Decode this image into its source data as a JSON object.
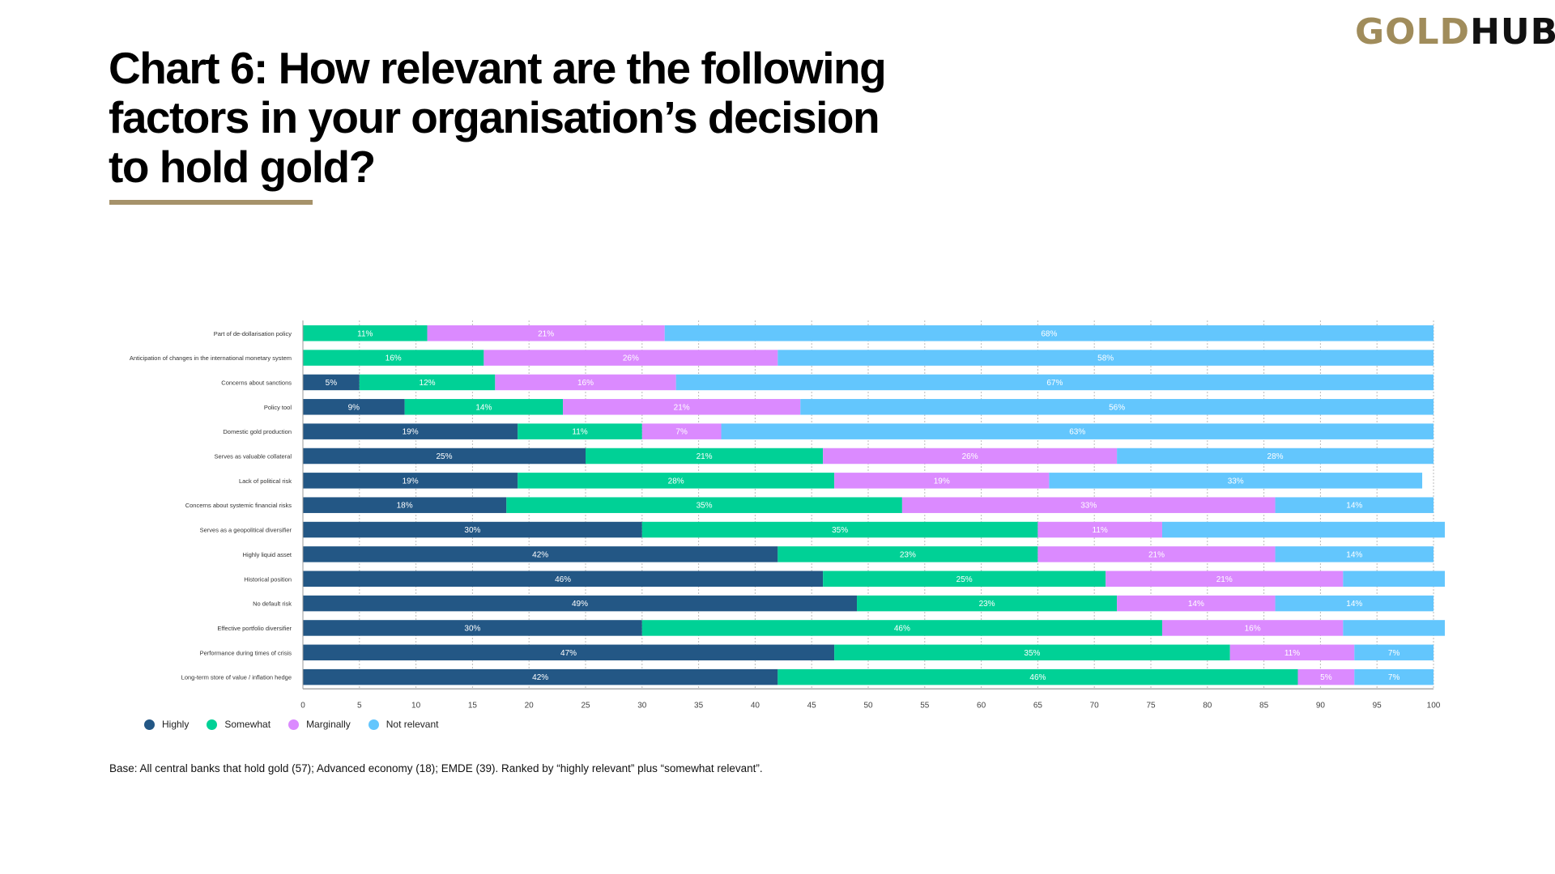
{
  "logo": {
    "part1": "GOLD",
    "part2": "HUB"
  },
  "page": {
    "title": "Chart 6: How relevant are the following factors in your organisation’s decision to hold gold?",
    "footnote": "Base: All central banks that hold gold (57); Advanced economy (18); EMDE (39). Ranked by “highly relevant” plus “somewhat relevant”.",
    "accent_color": "#a6926a"
  },
  "chart_data": {
    "type": "bar",
    "orientation": "horizontal",
    "stacked": true,
    "title": "Chart 6: How relevant are the following factors in your organisation’s decision to hold gold?",
    "xlabel": "",
    "ylabel": "",
    "xlim": [
      0,
      100
    ],
    "xticks": [
      0,
      5,
      10,
      15,
      20,
      25,
      30,
      35,
      40,
      45,
      50,
      55,
      60,
      65,
      70,
      75,
      80,
      85,
      90,
      95,
      100
    ],
    "grid": "vertical dotted",
    "legend_position": "bottom-left",
    "categories": [
      "Part of de-dollarisation policy",
      "Anticipation of changes in the international monetary system",
      "Concerns about sanctions",
      "Policy tool",
      "Domestic gold production",
      "Serves as valuable collateral",
      "Lack of political risk",
      "Concerns about systemic financial risks",
      "Serves as a geopolitical diversifier",
      "Highly liquid asset",
      "Historical position",
      "No default risk",
      "Effective portfolio diversifier",
      "Performance during times of crisis",
      "Long-term store of value / inflation hedge"
    ],
    "series": [
      {
        "name": "Highly",
        "color": "#235785",
        "values": [
          0,
          0,
          5,
          9,
          19,
          25,
          19,
          18,
          30,
          42,
          46,
          49,
          30,
          47,
          42
        ],
        "labels": [
          "",
          "",
          "5%",
          "9%",
          "19%",
          "25%",
          "19%",
          "18%",
          "30%",
          "42%",
          "46%",
          "49%",
          "30%",
          "47%",
          "42%"
        ]
      },
      {
        "name": "Somewhat",
        "color": "#00d196",
        "values": [
          11,
          16,
          12,
          14,
          11,
          21,
          28,
          35,
          35,
          23,
          25,
          23,
          46,
          35,
          46
        ],
        "labels": [
          "11%",
          "16%",
          "12%",
          "14%",
          "11%",
          "21%",
          "28%",
          "35%",
          "35%",
          "23%",
          "25%",
          "23%",
          "46%",
          "35%",
          "46%"
        ]
      },
      {
        "name": "Marginally",
        "color": "#db8aff",
        "values": [
          21,
          26,
          16,
          21,
          7,
          26,
          19,
          33,
          11,
          21,
          21,
          14,
          16,
          11,
          5
        ],
        "labels": [
          "21%",
          "26%",
          "16%",
          "21%",
          "7%",
          "26%",
          "19%",
          "33%",
          "11%",
          "21%",
          "21%",
          "14%",
          "16%",
          "11%",
          "5%"
        ]
      },
      {
        "name": "Not relevant",
        "color": "#63c6fd",
        "values": [
          68,
          58,
          67,
          56,
          63,
          28,
          33,
          14,
          25,
          14,
          9,
          14,
          9,
          7,
          7
        ],
        "labels": [
          "68%",
          "58%",
          "67%",
          "56%",
          "63%",
          "28%",
          "33%",
          "14%",
          "",
          "14%",
          "",
          "14%",
          "",
          "7%",
          "7%"
        ]
      }
    ]
  }
}
